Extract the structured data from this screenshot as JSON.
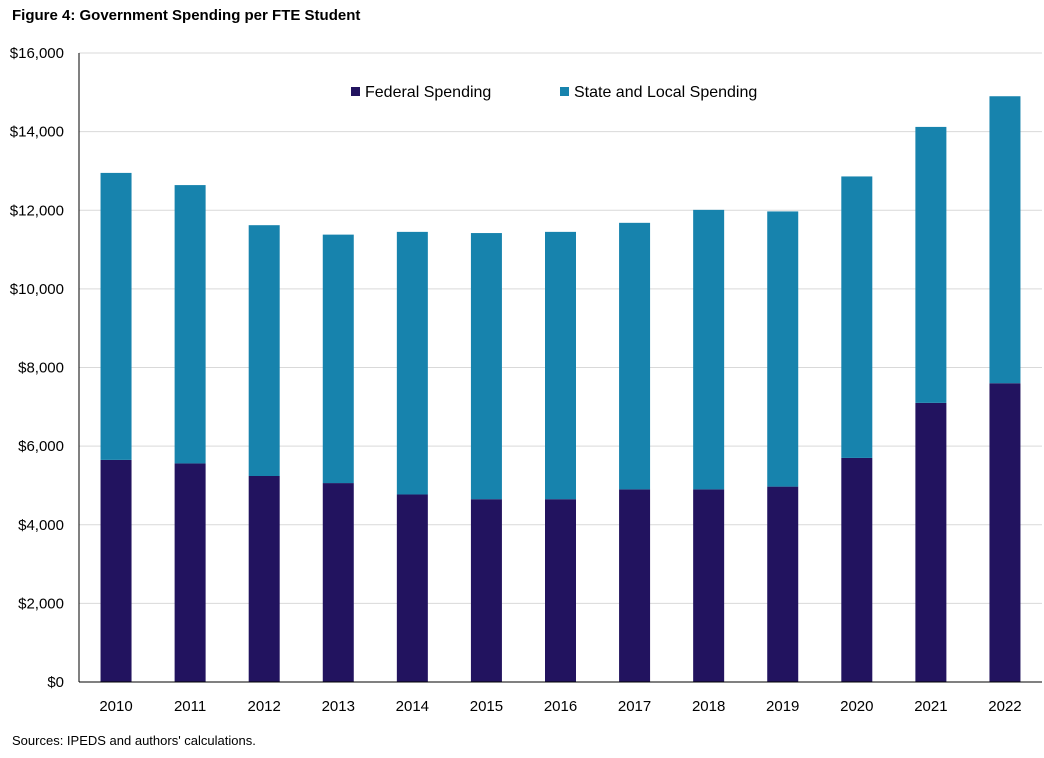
{
  "title": "Figure 4: Government Spending per FTE Student",
  "source": "Sources: IPEDS and authors' calculations.",
  "colors": {
    "federal": "#22135f",
    "state": "#1783ad",
    "grid": "#d9d9d9",
    "axis": "#000000"
  },
  "chart_data": {
    "type": "bar",
    "stacked": true,
    "title": "Figure 4: Government Spending per FTE Student",
    "xlabel": "",
    "ylabel": "",
    "ylim": [
      0,
      16000
    ],
    "yticks": [
      0,
      2000,
      4000,
      6000,
      8000,
      10000,
      12000,
      14000,
      16000
    ],
    "ytick_labels": [
      "$0",
      "$2,000",
      "$4,000",
      "$6,000",
      "$8,000",
      "$10,000",
      "$12,000",
      "$14,000",
      "$16,000"
    ],
    "grid": true,
    "legend_position": "top-center",
    "categories": [
      "2010",
      "2011",
      "2012",
      "2013",
      "2014",
      "2015",
      "2016",
      "2017",
      "2018",
      "2019",
      "2020",
      "2021",
      "2022"
    ],
    "series": [
      {
        "name": "Federal Spending",
        "color": "#22135f",
        "values": [
          5650,
          5560,
          5240,
          5060,
          4770,
          4650,
          4650,
          4900,
          4900,
          4970,
          5700,
          7100,
          7600
        ]
      },
      {
        "name": "State and Local Spending",
        "color": "#1783ad",
        "values": [
          7300,
          7080,
          6380,
          6320,
          6680,
          6770,
          6800,
          6780,
          7110,
          7000,
          7160,
          7020,
          7300
        ]
      }
    ]
  }
}
